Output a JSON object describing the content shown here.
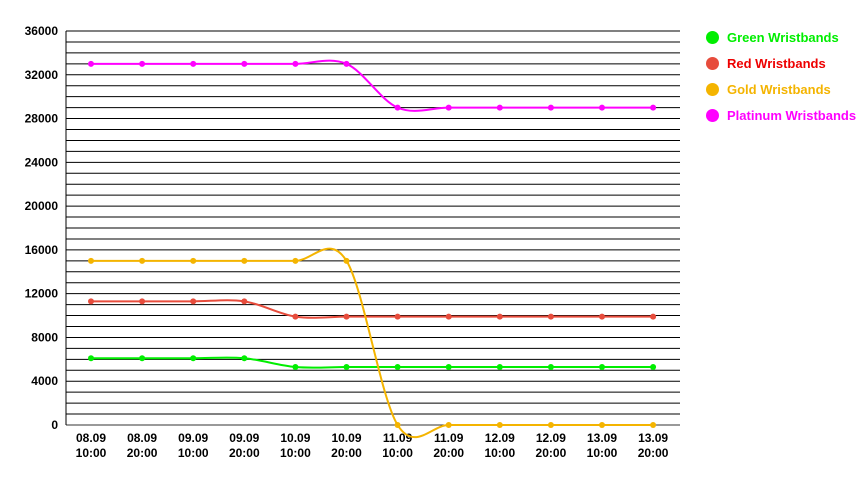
{
  "chart_data": {
    "type": "line",
    "categories": [
      "08.09 10:00",
      "08.09 20:00",
      "09.09 10:00",
      "09.09 20:00",
      "10.09 10:00",
      "10.09 20:00",
      "11.09 10:00",
      "11.09 20:00",
      "12.09 10:00",
      "12.09 20:00",
      "13.09 10:00",
      "13.09 20:00"
    ],
    "category_lines": [
      [
        "08.09",
        "10:00"
      ],
      [
        "08.09",
        "20:00"
      ],
      [
        "09.09",
        "10:00"
      ],
      [
        "09.09",
        "20:00"
      ],
      [
        "10.09",
        "10:00"
      ],
      [
        "10.09",
        "20:00"
      ],
      [
        "11.09",
        "10:00"
      ],
      [
        "11.09",
        "20:00"
      ],
      [
        "12.09",
        "10:00"
      ],
      [
        "12.09",
        "20:00"
      ],
      [
        "13.09",
        "10:00"
      ],
      [
        "13.09",
        "20:00"
      ]
    ],
    "y_ticks": [
      "36000",
      "32000",
      "28000",
      "24000",
      "20000",
      "16000",
      "12000",
      "8000",
      "4000",
      "0"
    ],
    "ylim": [
      0,
      36000
    ],
    "grid": true,
    "minor_grid_step": 1000,
    "legend_position": "right",
    "title": "",
    "xlabel": "",
    "ylabel": "",
    "series": [
      {
        "name": "Green Wristbands",
        "color": "#00ee00",
        "values": [
          6100,
          6100,
          6100,
          6100,
          5300,
          5300,
          5300,
          5300,
          5300,
          5300,
          5300,
          5300
        ]
      },
      {
        "name": "Red Wristbands",
        "color": "#e74c3c",
        "label_color": "#ee0000",
        "values": [
          11300,
          11300,
          11300,
          11300,
          9900,
          9900,
          9900,
          9900,
          9900,
          9900,
          9900,
          9900
        ]
      },
      {
        "name": "Gold Wristbands",
        "color": "#f4b400",
        "values": [
          15000,
          15000,
          15000,
          15000,
          15000,
          15000,
          0,
          0,
          0,
          0,
          0,
          0
        ]
      },
      {
        "name": "Platinum Wristbands",
        "color": "#ff00ff",
        "values": [
          33000,
          33000,
          33000,
          33000,
          33000,
          33000,
          29000,
          29000,
          29000,
          29000,
          29000,
          29000
        ]
      }
    ]
  }
}
